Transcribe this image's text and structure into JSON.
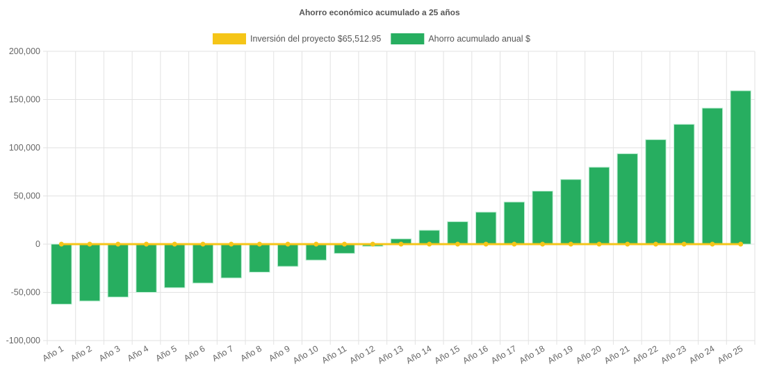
{
  "chart_data": {
    "type": "bar",
    "title": "Ahorro económico acumulado a 25 años",
    "categories": [
      "Año 1",
      "Año 2",
      "Año 3",
      "Año 4",
      "Año 5",
      "Año 6",
      "Año 7",
      "Año 8",
      "Año 9",
      "Año 10",
      "Año 11",
      "Año 12",
      "Año 13",
      "Año 14",
      "Año 15",
      "Año 16",
      "Año 17",
      "Año 18",
      "Año 19",
      "Año 20",
      "Año 21",
      "Año 22",
      "Año 23",
      "Año 24",
      "Año 25"
    ],
    "series": [
      {
        "name": "Inversión del proyecto $65,512.95",
        "type": "line",
        "color": "#f5c518",
        "values": [
          0,
          0,
          0,
          0,
          0,
          0,
          0,
          0,
          0,
          0,
          0,
          0,
          0,
          0,
          0,
          0,
          0,
          0,
          0,
          0,
          0,
          0,
          0,
          0,
          0
        ]
      },
      {
        "name": "Ahorro acumulado anual $",
        "type": "bar",
        "color": "#27ae60",
        "values": [
          -62300,
          -59000,
          -54900,
          -50000,
          -45200,
          -40400,
          -35100,
          -29100,
          -23100,
          -16600,
          -9600,
          -2200,
          5500,
          14400,
          23300,
          33200,
          43700,
          55000,
          67100,
          79800,
          93800,
          108400,
          124300,
          141100,
          159100
        ]
      }
    ],
    "ylim": [
      -100000,
      200000
    ],
    "yticks": [
      "200,000",
      "150,000",
      "100,000",
      "50,000",
      "0",
      "-50,000",
      "-100,000"
    ],
    "ytick_values": [
      200000,
      150000,
      100000,
      50000,
      0,
      -50000,
      -100000
    ],
    "grid": true,
    "legend": "top"
  }
}
